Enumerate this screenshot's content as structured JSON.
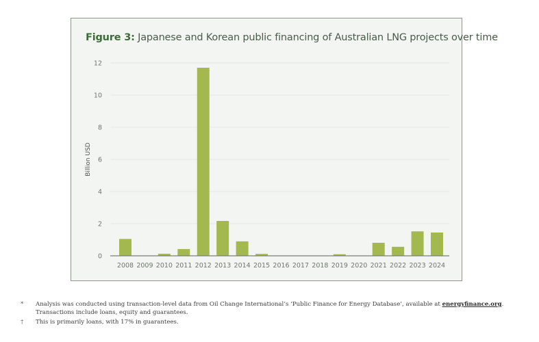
{
  "figure": {
    "label": "Figure 3:",
    "title": " Japanese and Korean public financing of Australian LNG projects over time"
  },
  "colors": {
    "bar": "#a3b84e",
    "panel_bg": "#f3f5f2",
    "title_green": "#3d6b3a",
    "axis": "#7a7f79",
    "grid": "#e3e6e2"
  },
  "chart_data": {
    "type": "bar",
    "title": "Figure 3: Japanese and Korean public financing of Australian LNG projects over time",
    "xlabel": "",
    "ylabel": "Billion USD",
    "ylim": [
      0,
      12
    ],
    "yticks": [
      0,
      2,
      4,
      6,
      8,
      10,
      12
    ],
    "grid": true,
    "legend": "none",
    "categories": [
      "2008",
      "2009",
      "2010",
      "2011",
      "2012",
      "2013",
      "2014",
      "2015",
      "2016",
      "2017",
      "2018",
      "2019",
      "2020",
      "2021",
      "2022",
      "2023",
      "2024"
    ],
    "values": [
      1.05,
      0,
      0.13,
      0.42,
      11.7,
      2.17,
      0.9,
      0.12,
      0,
      0,
      0,
      0.1,
      0,
      0.81,
      0.56,
      1.52,
      1.45
    ]
  },
  "footnotes": [
    {
      "mark": "*",
      "text_before": "Analysis was conducted using transaction-level data from Oil Change International’s ‘Public Finance for Energy Database’, available at ",
      "link": "energyfinance.org",
      "text_after": ".",
      "line2": "Transactions include loans, equity and guarantees."
    },
    {
      "mark": "†",
      "text": "This is primarily loans, with 17% in guarantees."
    }
  ]
}
